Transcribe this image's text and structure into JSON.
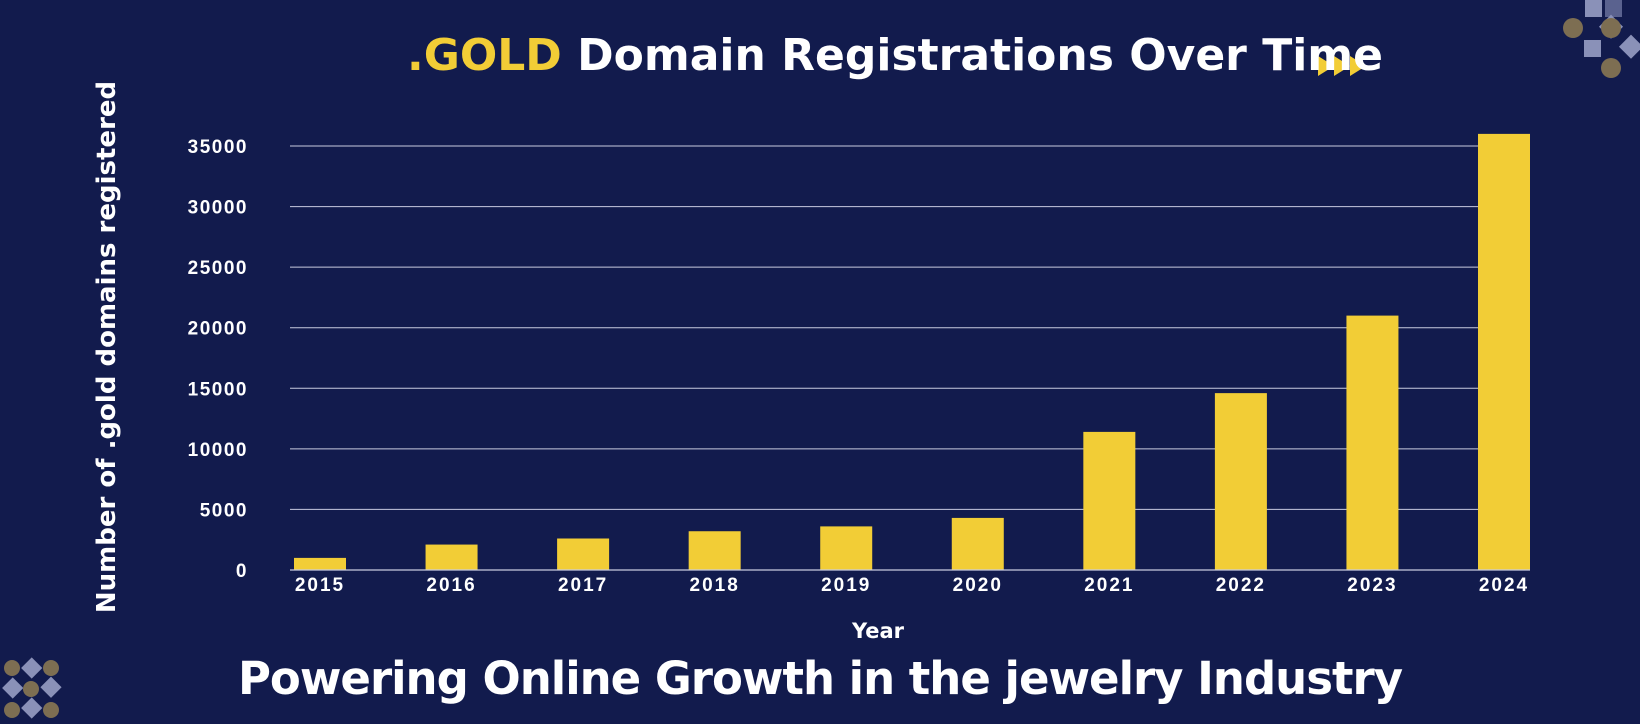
{
  "title": {
    "accent": ".GOLD",
    "rest": "Domain Registrations Over Time"
  },
  "footer": "Powering Online Growth in the jewelry Industry",
  "colors": {
    "background": "#121b4d",
    "bar": "#f2cd36",
    "text": "#ffffff",
    "grid": "#c8cbe0",
    "accent": "#f2cd36"
  },
  "decorations": {
    "title_arrows_icon": "triple-play-arrows",
    "corner_pattern": "dots-and-diamonds"
  },
  "chart_data": {
    "type": "bar",
    "categories": [
      "2015",
      "2016",
      "2017",
      "2018",
      "2019",
      "2020",
      "2021",
      "2022",
      "2023",
      "2024"
    ],
    "values": [
      1000,
      2100,
      2600,
      3200,
      3600,
      4300,
      11400,
      14600,
      21000,
      36000
    ],
    "xlabel": "Year",
    "ylabel": "Number of .gold domains registered",
    "yticks": [
      0,
      5000,
      10000,
      15000,
      20000,
      25000,
      30000,
      35000
    ],
    "ylim": [
      0,
      36000
    ],
    "grid": true,
    "legend": "none"
  }
}
